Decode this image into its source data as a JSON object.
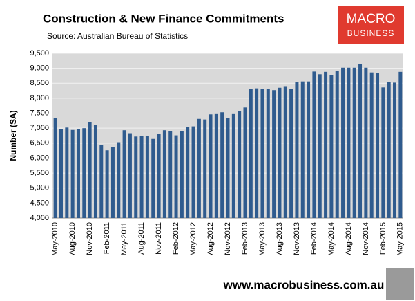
{
  "chart_data": {
    "type": "bar",
    "title": "Construction & New Finance Commitments",
    "subtitle": "Source: Australian Bureau of Statistics",
    "y_label": "Number (SA)",
    "color": "#2f5b8e",
    "grid": true,
    "categories": [
      "May-2010",
      null,
      null,
      "Aug-2010",
      null,
      null,
      "Nov-2010",
      null,
      null,
      "Feb-2011",
      null,
      null,
      "May-2011",
      null,
      null,
      "Aug-2011",
      null,
      null,
      "Nov-2011",
      null,
      null,
      "Feb-2012",
      null,
      null,
      "May-2012",
      null,
      null,
      "Aug-2012",
      null,
      null,
      "Nov-2012",
      null,
      null,
      "Feb-2013",
      null,
      null,
      "May-2013",
      null,
      null,
      "Aug-2013",
      null,
      null,
      "Nov-2013",
      null,
      null,
      "Feb-2014",
      null,
      null,
      "May-2014",
      null,
      null,
      "Aug-2014",
      null,
      null,
      "Nov-2014",
      null,
      null,
      "Feb-2015",
      null,
      null,
      "May-2015"
    ],
    "values": [
      7330,
      6980,
      7020,
      6940,
      6960,
      7000,
      7210,
      7100,
      6430,
      6260,
      6380,
      6530,
      6930,
      6830,
      6720,
      6750,
      6740,
      6640,
      6800,
      6930,
      6890,
      6760,
      6910,
      7030,
      7060,
      7310,
      7290,
      7460,
      7470,
      7530,
      7330,
      7470,
      7560,
      7690,
      8310,
      8330,
      8320,
      8300,
      8270,
      8350,
      8380,
      8320,
      8540,
      8560,
      8560,
      8890,
      8800,
      8880,
      8780,
      8900,
      9020,
      9020,
      9020,
      9150,
      9020,
      8860,
      8850,
      8360,
      8540,
      8520,
      8880
    ],
    "ylim": [
      4000,
      9500
    ],
    "yticks": [
      {
        "value": 4000,
        "label": "4,000"
      },
      {
        "value": 4500,
        "label": "4,500"
      },
      {
        "value": 5000,
        "label": "5,000"
      },
      {
        "value": 5500,
        "label": "5,500"
      },
      {
        "value": 6000,
        "label": "6,000"
      },
      {
        "value": 6500,
        "label": "6,500"
      },
      {
        "value": 7000,
        "label": "7,000"
      },
      {
        "value": 7500,
        "label": "7,500"
      },
      {
        "value": 8000,
        "label": "8,000"
      },
      {
        "value": 8500,
        "label": "8,500"
      },
      {
        "value": 9000,
        "label": "9,000"
      },
      {
        "value": 9500,
        "label": "9,500"
      }
    ]
  },
  "logo": {
    "line1": "MACRO",
    "line2": "BUSINESS"
  },
  "footer": "www.macrobusiness.com.au"
}
